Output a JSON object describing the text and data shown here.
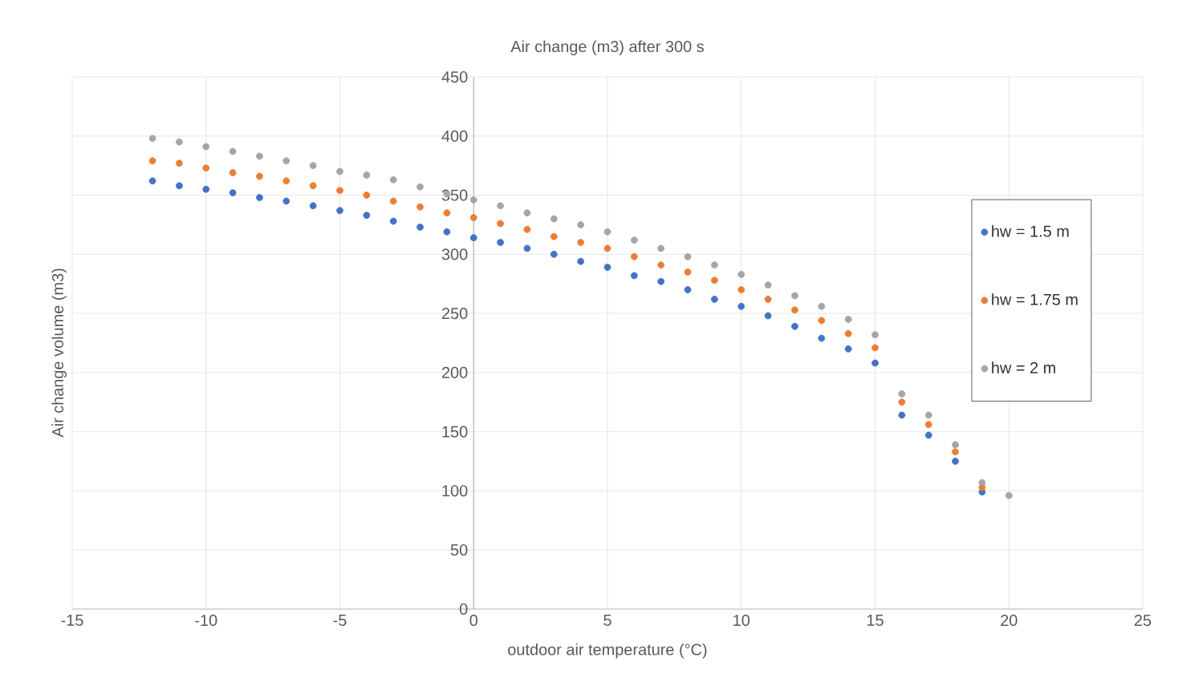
{
  "chart_data": {
    "type": "scatter",
    "title": "Air change (m3) after 300 s",
    "xlabel": "outdoor air temperature (°C)",
    "ylabel": "Air change volume (m3)",
    "x": [
      -12,
      -11,
      -10,
      -9,
      -8,
      -7,
      -6,
      -5,
      -4,
      -3,
      -2,
      -1,
      0,
      1,
      2,
      3,
      4,
      5,
      6,
      7,
      8,
      9,
      10,
      11,
      12,
      13,
      14,
      15,
      16,
      17,
      18,
      19,
      20
    ],
    "series": [
      {
        "name": "hw = 1.5 m",
        "color": "#4472c4",
        "values": [
          362,
          358,
          355,
          352,
          348,
          345,
          341,
          337,
          333,
          328,
          323,
          319,
          314,
          310,
          305,
          300,
          294,
          289,
          282,
          277,
          270,
          262,
          256,
          248,
          239,
          229,
          220,
          208,
          164,
          147,
          125,
          99,
          null
        ]
      },
      {
        "name": "hw = 1.75 m",
        "color": "#ed7d31",
        "values": [
          379,
          377,
          373,
          369,
          366,
          362,
          358,
          354,
          350,
          345,
          340,
          335,
          331,
          326,
          321,
          315,
          310,
          305,
          298,
          291,
          285,
          278,
          270,
          262,
          253,
          244,
          233,
          221,
          175,
          156,
          133,
          103,
          null
        ]
      },
      {
        "name": "hw = 2 m",
        "color": "#a5a5a5",
        "values": [
          398,
          395,
          391,
          387,
          383,
          379,
          375,
          370,
          367,
          363,
          357,
          351,
          346,
          341,
          335,
          330,
          325,
          319,
          312,
          305,
          298,
          291,
          283,
          274,
          265,
          256,
          245,
          232,
          182,
          164,
          139,
          107,
          96
        ]
      }
    ],
    "xlim": [
      -15,
      25
    ],
    "xticks": [
      -15,
      -10,
      -5,
      0,
      5,
      10,
      15,
      20,
      25
    ],
    "ylim": [
      0,
      450
    ],
    "yticks": [
      0,
      50,
      100,
      150,
      200,
      250,
      300,
      350,
      400,
      450
    ],
    "grid": true,
    "legend": "right"
  }
}
